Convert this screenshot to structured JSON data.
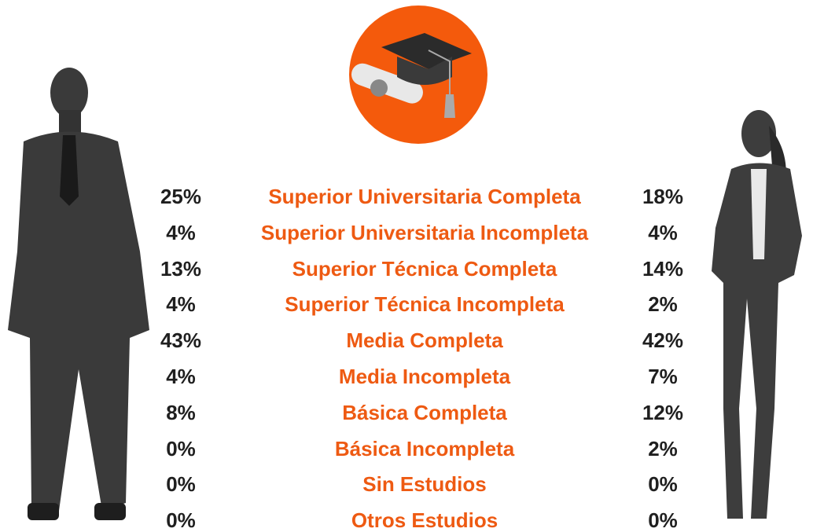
{
  "rows": [
    {
      "men": "25%",
      "level": "Superior Universitaria Completa",
      "women": "18%"
    },
    {
      "men": "4%",
      "level": "Superior Universitaria Incompleta",
      "women": "4%"
    },
    {
      "men": "13%",
      "level": "Superior Técnica Completa",
      "women": "14%"
    },
    {
      "men": "4%",
      "level": "Superior Técnica Incompleta",
      "women": "2%"
    },
    {
      "men": "43%",
      "level": "Media Completa",
      "women": "42%"
    },
    {
      "men": "4%",
      "level": "Media Incompleta",
      "women": "7%"
    },
    {
      "men": "8%",
      "level": "Básica Completa",
      "women": "12%"
    },
    {
      "men": "0%",
      "level": "Básica Incompleta",
      "women": "2%"
    },
    {
      "men": "0%",
      "level": "Sin Estudios",
      "women": "0%"
    },
    {
      "men": "0%",
      "level": "Otros Estudios",
      "women": "0%"
    }
  ]
}
